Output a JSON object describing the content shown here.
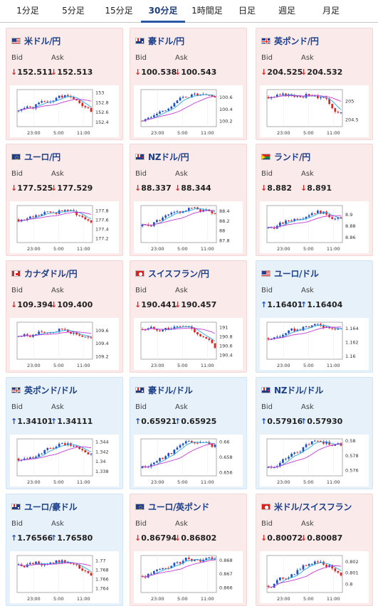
{
  "tabs": [
    "1分足",
    "5分足",
    "15分足",
    "30分足",
    "1時間足",
    "日足",
    "週足",
    "月足"
  ],
  "active_tab": "30分足",
  "labels": {
    "bid": "Bid",
    "ask": "Ask"
  },
  "colors": {
    "up_candle": "#1f4fbf",
    "down_candle": "#e02424",
    "ma_short": "#28a8e0",
    "ma_long": "#c23ad6",
    "down_arrow": "#e02424",
    "up_arrow": "#1f4fbf",
    "red_card": "#fbeaea",
    "blue_card": "#e6f1fa"
  },
  "cards": [
    {
      "pair": "米ドル/円",
      "flag": "us-flag",
      "bid": "152.511",
      "ask": "152.513",
      "dir": "down",
      "bg": "red",
      "chart_data": {
        "type": "candlestick",
        "x_ticks": [
          "23:00",
          "5:00",
          "11:00"
        ],
        "y_ticks": [
          "153",
          "152.8",
          "152.6",
          "152.4"
        ],
        "ylim": [
          152.3,
          153.05
        ],
        "seed": 1,
        "start": 152.62,
        "end": 152.51,
        "peak": 152.95
      }
    },
    {
      "pair": "豪ドル/円",
      "flag": "au-flag",
      "bid": "100.538",
      "ask": "100.543",
      "dir": "down",
      "bg": "red",
      "chart_data": {
        "type": "candlestick",
        "x_ticks": [
          "23:00",
          "5:00",
          "11:00"
        ],
        "y_ticks": [
          "100.6",
          "100.4",
          "100.2"
        ],
        "ylim": [
          100.1,
          100.72
        ],
        "seed": 2,
        "start": 100.2,
        "end": 100.54,
        "peak": 100.66
      }
    },
    {
      "pair": "英ポンド/円",
      "flag": "uk-flag",
      "bid": "204.525",
      "ask": "204.532",
      "dir": "down",
      "bg": "red",
      "chart_data": {
        "type": "candlestick",
        "x_ticks": [
          "23:00",
          "5:00",
          "11:00"
        ],
        "y_ticks": [
          "205",
          "204.5"
        ],
        "ylim": [
          204.3,
          205.3
        ],
        "seed": 3,
        "start": 205.1,
        "end": 204.53,
        "peak": 205.2
      }
    },
    {
      "pair": "ユーロ/円",
      "flag": "eu-flag",
      "bid": "177.525",
      "ask": "177.529",
      "dir": "down",
      "bg": "red",
      "chart_data": {
        "type": "candlestick",
        "x_ticks": [
          "23:00",
          "5:00",
          "11:00"
        ],
        "y_ticks": [
          "177.8",
          "177.6",
          "177.4",
          "177.2"
        ],
        "ylim": [
          177.1,
          177.9
        ],
        "seed": 4,
        "start": 177.6,
        "end": 177.53,
        "peak": 177.82
      }
    },
    {
      "pair": "NZドル/円",
      "flag": "nz-flag",
      "bid": "88.337",
      "ask": "88.344",
      "dir": "down",
      "bg": "red",
      "chart_data": {
        "type": "candlestick",
        "x_ticks": [
          "23:00",
          "5:00",
          "11:00"
        ],
        "y_ticks": [
          "88.4",
          "88.2",
          "88",
          "87.8"
        ],
        "ylim": [
          87.75,
          88.5
        ],
        "seed": 5,
        "start": 88.08,
        "end": 88.34,
        "peak": 88.45
      }
    },
    {
      "pair": "ランド/円",
      "flag": "za-flag",
      "bid": "8.882",
      "ask": "8.891",
      "dir": "down",
      "bg": "red",
      "chart_data": {
        "type": "candlestick",
        "x_ticks": [
          "23:00",
          "5:00",
          "11:00"
        ],
        "y_ticks": [
          "8.9",
          "8.88",
          "8.86"
        ],
        "ylim": [
          8.85,
          8.915
        ],
        "seed": 6,
        "start": 8.875,
        "end": 8.885,
        "peak": 8.908
      }
    },
    {
      "pair": "カナダドル/円",
      "flag": "ca-flag",
      "bid": "109.394",
      "ask": "109.400",
      "dir": "down",
      "bg": "red",
      "chart_data": {
        "type": "candlestick",
        "x_ticks": [
          "23:00",
          "5:00",
          "11:00"
        ],
        "y_ticks": [
          "109.6",
          "109.4",
          "109.2"
        ],
        "ylim": [
          109.15,
          109.72
        ],
        "seed": 7,
        "start": 109.5,
        "end": 109.4,
        "peak": 109.62
      }
    },
    {
      "pair": "スイスフラン/円",
      "flag": "ch-flag",
      "bid": "190.441",
      "ask": "190.457",
      "dir": "down",
      "bg": "red",
      "chart_data": {
        "type": "candlestick",
        "x_ticks": [
          "23:00",
          "5:00",
          "11:00"
        ],
        "y_ticks": [
          "191",
          "190.8",
          "190.6",
          "190.4"
        ],
        "ylim": [
          190.3,
          191.1
        ],
        "seed": 8,
        "start": 190.95,
        "end": 190.45,
        "peak": 191.0
      }
    },
    {
      "pair": "ユーロ/ドル",
      "flag": "us-flag",
      "bid": "1.16401",
      "ask": "1.16404",
      "dir": "up",
      "bg": "blue",
      "chart_data": {
        "type": "candlestick",
        "x_ticks": [
          "23:00",
          "5:00",
          "11:00"
        ],
        "y_ticks": [
          "1.164",
          "1.162",
          "1.16"
        ],
        "ylim": [
          1.1595,
          1.1648
        ],
        "seed": 9,
        "start": 1.1625,
        "end": 1.164,
        "peak": 1.1645
      }
    },
    {
      "pair": "英ポンド/ドル",
      "flag": "uk-flag",
      "bid": "1.34101",
      "ask": "1.34111",
      "dir": "up",
      "bg": "blue",
      "chart_data": {
        "type": "candlestick",
        "x_ticks": [
          "23:00",
          "5:00",
          "11:00"
        ],
        "y_ticks": [
          "1.344",
          "1.342",
          "1.34",
          "1.338"
        ],
        "ylim": [
          1.337,
          1.3445
        ],
        "seed": 10,
        "start": 1.3405,
        "end": 1.341,
        "peak": 1.3435
      }
    },
    {
      "pair": "豪ドル/ドル",
      "flag": "au-flag",
      "bid": "0.65921",
      "ask": "0.65925",
      "dir": "up",
      "bg": "blue",
      "chart_data": {
        "type": "candlestick",
        "x_ticks": [
          "23:00",
          "5:00",
          "11:00"
        ],
        "y_ticks": [
          "0.66",
          "0.658",
          "0.656"
        ],
        "ylim": [
          0.6555,
          0.6603
        ],
        "seed": 11,
        "start": 0.6565,
        "end": 0.6592,
        "peak": 0.6601
      }
    },
    {
      "pair": "NZドル/ドル",
      "flag": "nz-flag",
      "bid": "0.57916",
      "ask": "0.57930",
      "dir": "up",
      "bg": "blue",
      "chart_data": {
        "type": "candlestick",
        "x_ticks": [
          "23:00",
          "5:00",
          "11:00"
        ],
        "y_ticks": [
          "0.58",
          "0.578",
          "0.576"
        ],
        "ylim": [
          0.5752,
          0.5802
        ],
        "seed": 12,
        "start": 0.5763,
        "end": 0.5792,
        "peak": 0.58
      }
    },
    {
      "pair": "ユーロ/豪ドル",
      "flag": "au-flag",
      "bid": "1.76566",
      "ask": "1.76580",
      "dir": "up",
      "bg": "blue",
      "chart_data": {
        "type": "candlestick",
        "x_ticks": [
          "23:00",
          "5:00",
          "11:00"
        ],
        "y_ticks": [
          "1.77",
          "1.768",
          "1.766",
          "1.764"
        ],
        "ylim": [
          1.763,
          1.771
        ],
        "seed": 13,
        "start": 1.769,
        "end": 1.7657,
        "peak": 1.7698
      }
    },
    {
      "pair": "ユーロ/英ポンド",
      "flag": "eu-flag",
      "bid": "0.86794",
      "ask": "0.86802",
      "dir": "down",
      "bg": "red",
      "chart_data": {
        "type": "candlestick",
        "x_ticks": [
          "23:00",
          "5:00",
          "11:00"
        ],
        "y_ticks": [
          "0.868",
          "0.867",
          "0.866"
        ],
        "ylim": [
          0.8656,
          0.8683
        ],
        "seed": 14,
        "start": 0.8668,
        "end": 0.8679,
        "peak": 0.8681
      }
    },
    {
      "pair": "米ドル/スイスフラン",
      "flag": "ch-flag",
      "bid": "0.80072",
      "ask": "0.80087",
      "dir": "down",
      "bg": "red",
      "chart_data": {
        "type": "candlestick",
        "x_ticks": [
          "23:00",
          "5:00",
          "11:00"
        ],
        "y_ticks": [
          "0.802",
          "0.801",
          "0.8"
        ],
        "ylim": [
          0.7992,
          0.8025
        ],
        "seed": 15,
        "start": 0.7998,
        "end": 0.8007,
        "peak": 0.8022
      }
    }
  ]
}
